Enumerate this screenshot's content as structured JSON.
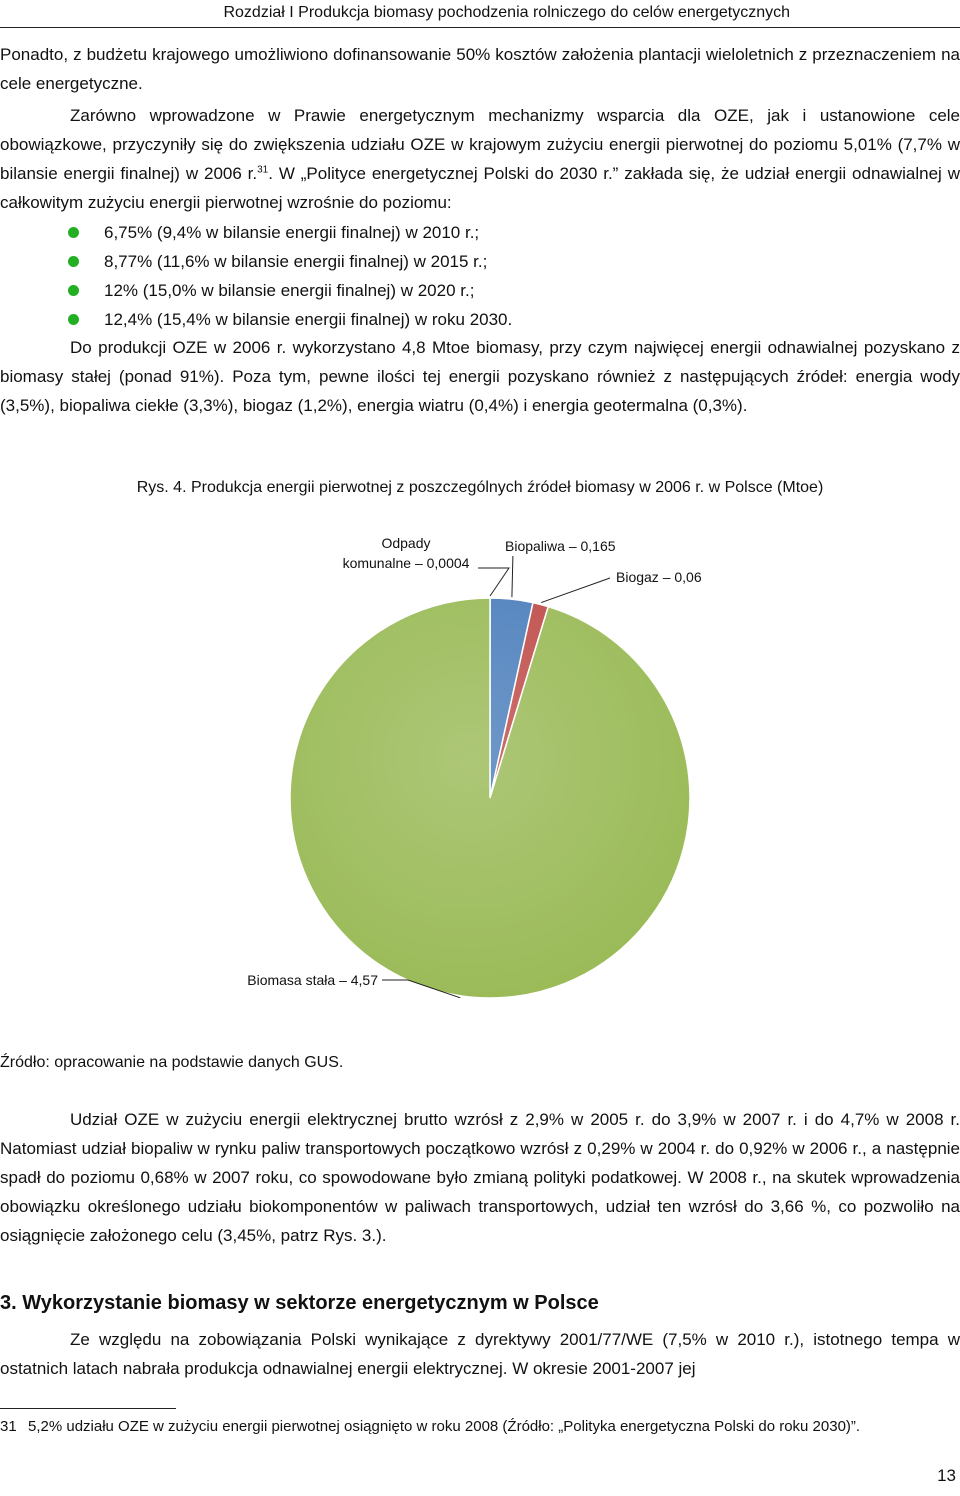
{
  "header": {
    "running_title": "Rozdział I Produkcja biomasy pochodzenia rolniczego do celów energetycznych"
  },
  "paragraph1": "Ponadto, z budżetu krajowego umożliwiono dofinansowanie 50% kosztów założenia plantacji wieloletnich z przeznaczeniem na cele energetyczne.",
  "paragraph2": {
    "text": "Zarówno wprowadzone w Prawie energetycznym mechanizmy wsparcia dla OZE, jak i ustanowione cele obowiązkowe, przyczyniły się do zwiększenia udziału OZE w krajowym zużyciu energii pierwotnej do poziomu 5,01% (7,7% w bilansie energii finalnej) w 2006 r.",
    "footnote_ref": "31",
    "text_after": ". W „Polityce energetycznej Polski do 2030 r.” zakłada się, że udział energii odnawialnej w całkowitym zużyciu energii pierwotnej wzrośnie do poziomu:"
  },
  "bullets": [
    "6,75% (9,4% w bilansie energii finalnej) w 2010 r.;",
    "8,77% (11,6% w bilansie energii finalnej) w 2015 r.;",
    "12% (15,0% w bilansie energii finalnej) w 2020 r.;",
    "12,4% (15,4% w bilansie energii finalnej) w roku 2030."
  ],
  "paragraph3": "Do produkcji OZE w 2006 r. wykorzystano 4,8 Mtoe biomasy, przy czym najwięcej energii odnawialnej pozyskano z biomasy stałej (ponad 91%). Poza tym, pewne ilości tej energii pozyskano również z następujących źródeł: energia wody (3,5%), biopaliwa ciekłe (3,3%), biogaz (1,2%), energia wiatru (0,4%) i energia geotermalna (0,3%).",
  "figure_caption": "Rys. 4. Produkcja energii pierwotnej z poszczególnych źródeł biomasy w 2006 r. w Polsce (Mtoe)",
  "chart_data": {
    "type": "pie",
    "title": "",
    "slices": [
      {
        "label_lines": [
          "Odpady",
          "komunalne – 0,0004"
        ],
        "value": 0.0004,
        "color": "#4f81bd"
      },
      {
        "label_lines": [
          "Biopaliwa – 0,165"
        ],
        "value": 0.165,
        "color": "#4f81bd"
      },
      {
        "label_lines": [
          "Biogaz – 0,06"
        ],
        "value": 0.06,
        "color": "#c0504d"
      },
      {
        "label_lines": [
          "Biomasa stała – 4,57"
        ],
        "value": 4.57,
        "color": "#9bbb59"
      }
    ]
  },
  "source": "Źródło: opracowanie na podstawie danych GUS.",
  "paragraph4": "Udział OZE w zużyciu energii elektrycznej brutto wzrósł z 2,9% w 2005 r. do 3,9% w 2007 r. i do 4,7% w 2008 r. Natomiast udział biopaliw w rynku paliw transportowych początkowo wzrósł z 0,29% w 2004 r. do 0,92% w 2006 r., a następnie spadł do poziomu 0,68% w 2007 roku, co spowodowane było zmianą polityki podatkowej. W 2008 r., na skutek wprowadzenia obowiązku określonego udziału biokomponentów w paliwach transportowych, udział ten wzrósł do 3,66 %, co pozwoliło na osiągnięcie założonego celu (3,45%, patrz Rys. 3.).",
  "section_title": "3. Wykorzystanie biomasy w sektorze energetycznym w Polsce",
  "paragraph5": "Ze względu na zobowiązania Polski wynikające z dyrektywy 2001/77/WE (7,5% w 2010 r.), istotnego tempa w ostatnich latach nabrała produkcja odnawialnej energii elektrycznej. W okresie 2001-2007 jej",
  "footnote": {
    "number": "31",
    "text": "5,2% udziału OZE w zużyciu energii pierwotnej osiągnięto w roku 2008 (Źródło: „Polityka energetyczna Polski do roku 2030)”."
  },
  "page_number": "13"
}
